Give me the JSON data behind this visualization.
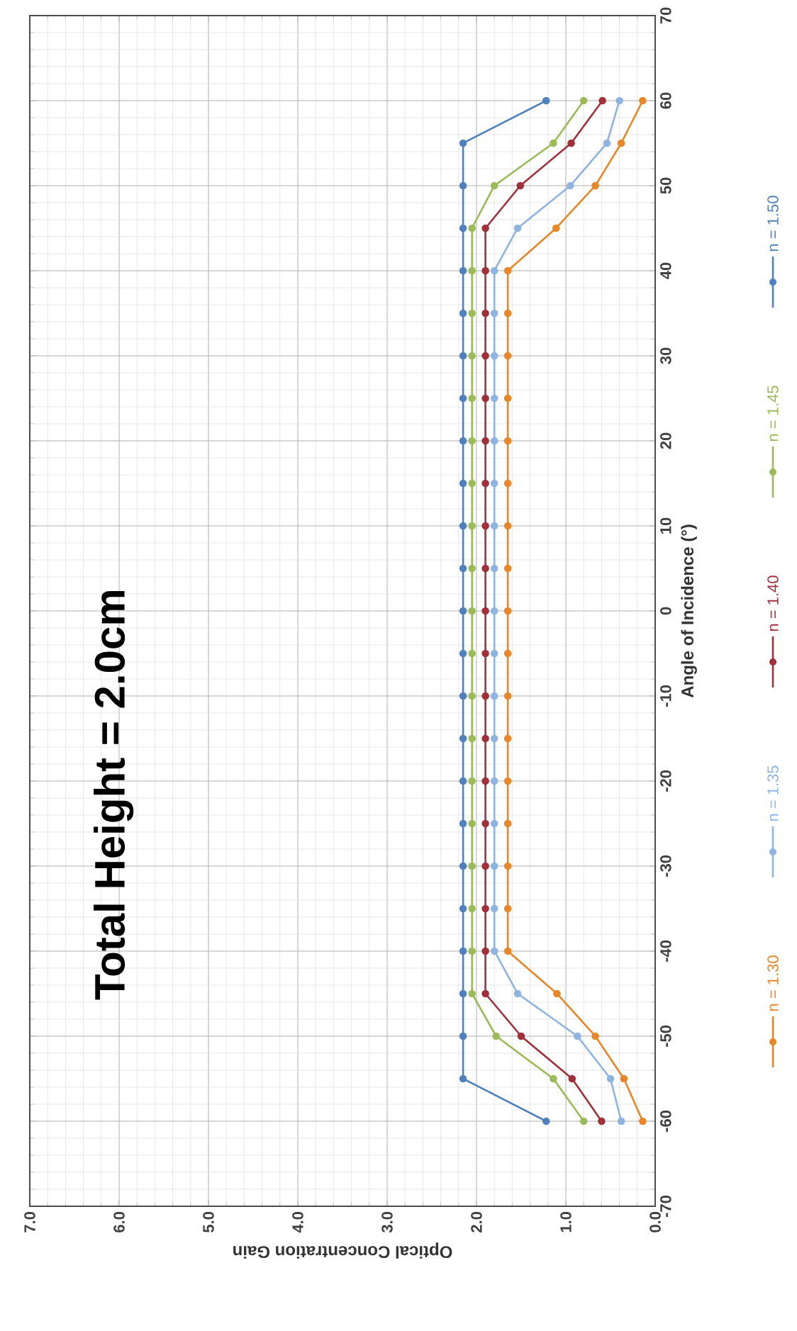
{
  "chart_data": {
    "type": "line",
    "title": "Total Height = 2.0cm",
    "xlabel": "Optical Concentration Gain",
    "ylabel": "Angle of Incidence (°)",
    "series": [
      {
        "name": "n = 1.30",
        "color": "#e8872a",
        "x": [
          0.14,
          0.35,
          0.67,
          1.1,
          1.65,
          1.65,
          1.65,
          1.65,
          1.65,
          1.65,
          1.65,
          1.65,
          1.65,
          1.65,
          1.65,
          1.65,
          1.65,
          1.65,
          1.65,
          1.65,
          1.65,
          1.11,
          0.67,
          0.38,
          0.14
        ],
        "values": [
          -60,
          -55,
          -50,
          -45,
          -40,
          -35,
          -30,
          -25,
          -20,
          -15,
          -10,
          -5,
          0,
          5,
          10,
          15,
          20,
          25,
          30,
          35,
          40,
          45,
          50,
          55,
          60
        ]
      },
      {
        "name": "n = 1.35",
        "color": "#8fb4e0",
        "x": [
          0.38,
          0.5,
          0.87,
          1.54,
          1.8,
          1.8,
          1.8,
          1.8,
          1.8,
          1.8,
          1.8,
          1.8,
          1.8,
          1.8,
          1.8,
          1.8,
          1.8,
          1.8,
          1.8,
          1.8,
          1.8,
          1.54,
          0.95,
          0.54,
          0.4
        ],
        "values": [
          -60,
          -55,
          -50,
          -45,
          -40,
          -35,
          -30,
          -25,
          -20,
          -15,
          -10,
          -5,
          0,
          5,
          10,
          15,
          20,
          25,
          30,
          35,
          40,
          45,
          50,
          55,
          60
        ]
      },
      {
        "name": "n = 1.40",
        "color": "#a0303a",
        "x": [
          0.6,
          0.93,
          1.5,
          1.9,
          1.9,
          1.9,
          1.9,
          1.9,
          1.9,
          1.9,
          1.9,
          1.9,
          1.9,
          1.9,
          1.9,
          1.9,
          1.9,
          1.9,
          1.9,
          1.9,
          1.9,
          1.9,
          1.51,
          0.94,
          0.59
        ],
        "values": [
          -60,
          -55,
          -50,
          -45,
          -40,
          -35,
          -30,
          -25,
          -20,
          -15,
          -10,
          -5,
          0,
          5,
          10,
          15,
          20,
          25,
          30,
          35,
          40,
          45,
          50,
          55,
          60
        ]
      },
      {
        "name": "n = 1.45",
        "color": "#9bbb59",
        "x": [
          0.8,
          1.14,
          1.78,
          2.05,
          2.05,
          2.05,
          2.05,
          2.05,
          2.05,
          2.05,
          2.05,
          2.05,
          2.05,
          2.05,
          2.05,
          2.05,
          2.05,
          2.05,
          2.05,
          2.05,
          2.05,
          2.05,
          1.8,
          1.14,
          0.8
        ],
        "values": [
          -60,
          -55,
          -50,
          -45,
          -40,
          -35,
          -30,
          -25,
          -20,
          -15,
          -10,
          -5,
          0,
          5,
          10,
          15,
          20,
          25,
          30,
          35,
          40,
          45,
          50,
          55,
          60
        ]
      },
      {
        "name": "n = 1.50",
        "color": "#4f81bd",
        "x": [
          1.22,
          2.15,
          2.15,
          2.15,
          2.15,
          2.15,
          2.15,
          2.15,
          2.15,
          2.15,
          2.15,
          2.15,
          2.15,
          2.15,
          2.15,
          2.15,
          2.15,
          2.15,
          2.15,
          2.15,
          2.15,
          2.15,
          2.15,
          2.15,
          1.22
        ],
        "values": [
          -60,
          -55,
          -50,
          -45,
          -40,
          -35,
          -30,
          -25,
          -20,
          -15,
          -10,
          -5,
          0,
          5,
          10,
          15,
          20,
          25,
          30,
          35,
          40,
          45,
          50,
          55,
          60
        ]
      }
    ],
    "xlim": [
      7,
      0
    ],
    "xticks": [
      {
        "value": 7,
        "label": "7.0"
      },
      {
        "value": 6,
        "label": "6.0"
      },
      {
        "value": 5,
        "label": "5.0"
      },
      {
        "value": 4,
        "label": "4.0"
      },
      {
        "value": 3,
        "label": "3.0"
      },
      {
        "value": 2,
        "label": "2.0"
      },
      {
        "value": 1,
        "label": "1.0"
      },
      {
        "value": 0,
        "label": "0.0"
      }
    ],
    "ylim": [
      -70,
      70
    ],
    "yticks": [
      -70,
      -60,
      -50,
      -40,
      -30,
      -20,
      -10,
      0,
      10,
      20,
      30,
      40,
      50,
      60,
      70
    ],
    "grid": true,
    "legend": "right",
    "marker": "circle",
    "line_style": "solid"
  }
}
